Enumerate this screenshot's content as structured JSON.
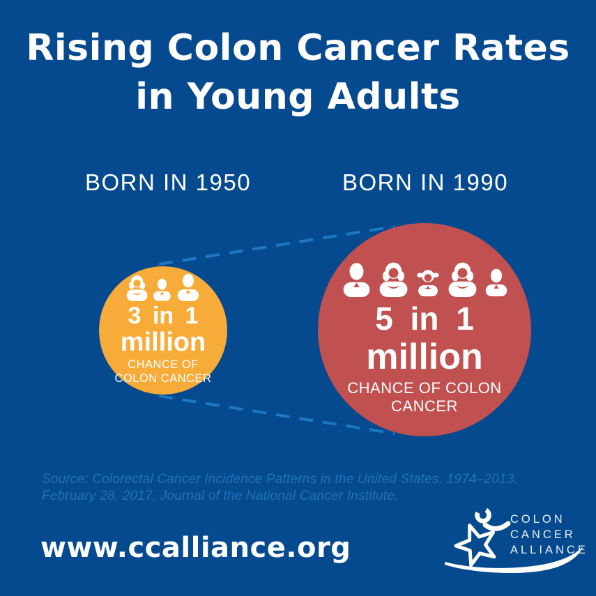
{
  "title": {
    "line1": "Rising Colon Cancer Rates",
    "line2": "in Young Adults"
  },
  "comparison": {
    "left": {
      "label": "BORN IN 1950",
      "people": [
        "woman",
        "man",
        "man"
      ],
      "stat_top": "3 in 1",
      "stat_unit": "million",
      "caption_line1": "CHANCE OF",
      "caption_line2": "COLON CANCER"
    },
    "right": {
      "label": "BORN IN 1990",
      "people": [
        "man",
        "woman",
        "girl",
        "woman",
        "man"
      ],
      "stat_top": "5 in 1",
      "stat_unit": "million",
      "caption_line1": "CHANCE OF COLON",
      "caption_line2": "CANCER"
    }
  },
  "source": {
    "line1": "Source: Colorectal Cancer Incidence Patterns in the United States, 1974–2013.",
    "line2": "February 28, 2017, Journal of the National Cancer Institute."
  },
  "footer": {
    "website": "www.ccalliance.org"
  },
  "logo": {
    "line1": "COLON",
    "line2": "CANCER",
    "line3": "ALLIANCE"
  },
  "colors": {
    "background": "#05498e",
    "dashed_line": "#1c78c6",
    "left_circle": "#f7ab38",
    "right_circle": "#c05150",
    "source_text": "#1e74b9",
    "text": "#ffffff"
  }
}
